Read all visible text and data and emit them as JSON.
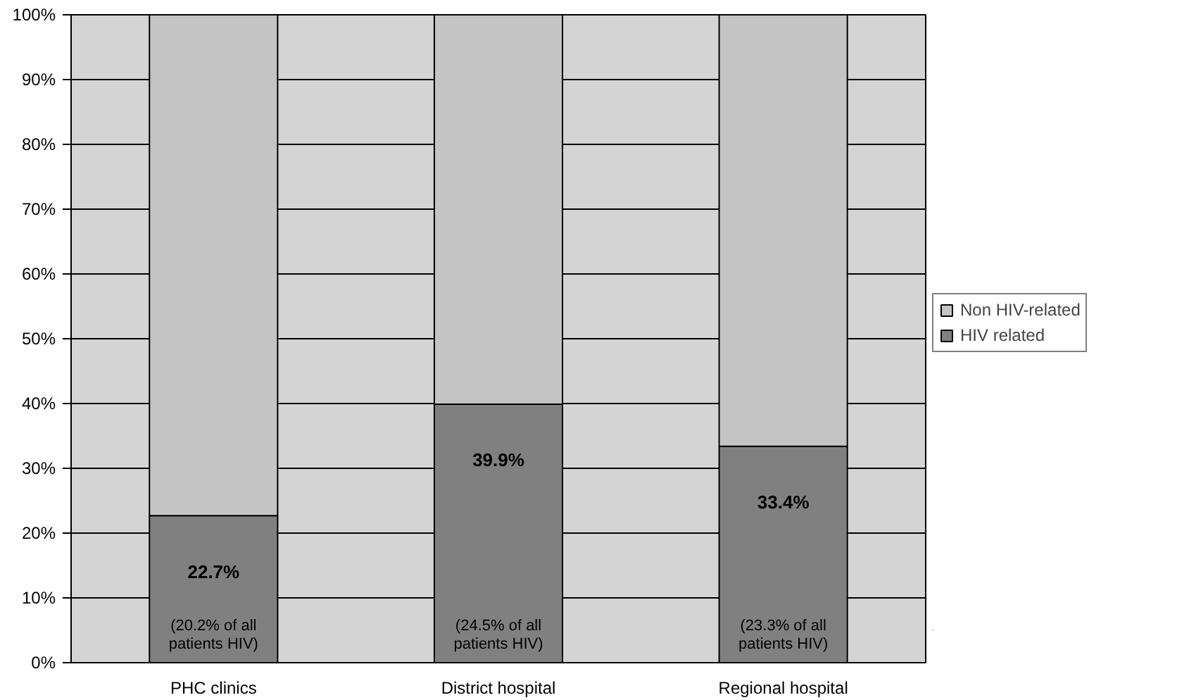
{
  "chart_data": {
    "type": "bar",
    "stacked": true,
    "categories": [
      "PHC clinics",
      "District hospital",
      "Regional hospital"
    ],
    "series": [
      {
        "name": "HIV related",
        "color": "#808080",
        "values": [
          22.7,
          39.9,
          33.4
        ],
        "value_labels": [
          "22.7%",
          "39.9%",
          "33.4%"
        ]
      },
      {
        "name": "Non HIV-related",
        "color": "#c4c4c4",
        "values": [
          77.3,
          60.1,
          66.6
        ]
      }
    ],
    "ylim": [
      0,
      100
    ],
    "yticks": [
      {
        "value": 0,
        "label": "0%"
      },
      {
        "value": 10,
        "label": "10%"
      },
      {
        "value": 20,
        "label": "20%"
      },
      {
        "value": 30,
        "label": "30%"
      },
      {
        "value": 40,
        "label": "40%"
      },
      {
        "value": 50,
        "label": "50%"
      },
      {
        "value": 60,
        "label": "60%"
      },
      {
        "value": 70,
        "label": "70%"
      },
      {
        "value": 80,
        "label": "80%"
      },
      {
        "value": 90,
        "label": "90%"
      },
      {
        "value": 100,
        "label": "100%"
      }
    ],
    "grid": "y",
    "legend": "right",
    "annotations": [
      "(20.2% of all\npatients HIV)",
      "(24.5% of all\npatients HIV)",
      "(23.3% of all\npatients HIV)"
    ]
  }
}
